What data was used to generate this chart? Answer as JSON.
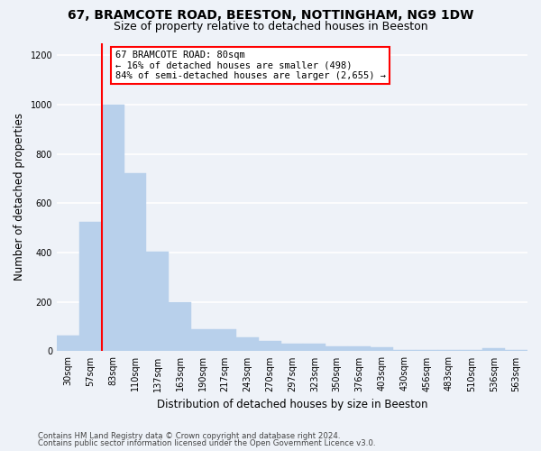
{
  "title1": "67, BRAMCOTE ROAD, BEESTON, NOTTINGHAM, NG9 1DW",
  "title2": "Size of property relative to detached houses in Beeston",
  "xlabel": "Distribution of detached houses by size in Beeston",
  "ylabel": "Number of detached properties",
  "bar_labels": [
    "30sqm",
    "57sqm",
    "83sqm",
    "110sqm",
    "137sqm",
    "163sqm",
    "190sqm",
    "217sqm",
    "243sqm",
    "270sqm",
    "297sqm",
    "323sqm",
    "350sqm",
    "376sqm",
    "403sqm",
    "430sqm",
    "456sqm",
    "483sqm",
    "510sqm",
    "536sqm",
    "563sqm"
  ],
  "bar_values": [
    65,
    525,
    1000,
    720,
    405,
    198,
    90,
    88,
    58,
    40,
    32,
    30,
    20,
    20,
    18,
    5,
    5,
    5,
    5,
    12,
    5
  ],
  "bar_color": "#b8d0eb",
  "bar_edgecolor": "#b8d0eb",
  "vline_color": "red",
  "vline_x": 1.5,
  "ylim": [
    0,
    1250
  ],
  "yticks": [
    0,
    200,
    400,
    600,
    800,
    1000,
    1200
  ],
  "annotation_text": "67 BRAMCOTE ROAD: 80sqm\n← 16% of detached houses are smaller (498)\n84% of semi-detached houses are larger (2,655) →",
  "annotation_box_color": "white",
  "annotation_box_edgecolor": "red",
  "footer1": "Contains HM Land Registry data © Crown copyright and database right 2024.",
  "footer2": "Contains public sector information licensed under the Open Government Licence v3.0.",
  "bg_color": "#eef2f8",
  "grid_color": "white",
  "title1_fontsize": 10,
  "title2_fontsize": 9,
  "ylabel_fontsize": 8.5,
  "xlabel_fontsize": 8.5,
  "tick_fontsize": 7,
  "ann_fontsize": 7.5
}
